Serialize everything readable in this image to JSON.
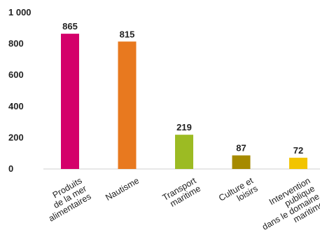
{
  "chart_data": {
    "type": "bar",
    "categories": [
      [
        "Produits",
        "de la mer",
        "alimentaires"
      ],
      [
        "Nautisme"
      ],
      [
        "Transport",
        "maritime"
      ],
      [
        "Culture et",
        "loisirs"
      ],
      [
        "Intervention",
        "publique",
        "dans le domaine",
        "maritime"
      ]
    ],
    "values": [
      865,
      815,
      219,
      87,
      72
    ],
    "value_labels": [
      "865",
      "815",
      "219",
      "87",
      "72"
    ],
    "colors": [
      "#d4006a",
      "#e8791f",
      "#9cbb23",
      "#a68a00",
      "#f2c400"
    ],
    "y_ticks": [
      0,
      200,
      400,
      600,
      800,
      1000
    ],
    "y_tick_labels": [
      "0",
      "200",
      "400",
      "600",
      "800",
      "1 000"
    ],
    "ylim": [
      0,
      1000
    ],
    "grid": false,
    "legend": "none",
    "title": "",
    "xlabel": "",
    "ylabel": ""
  }
}
